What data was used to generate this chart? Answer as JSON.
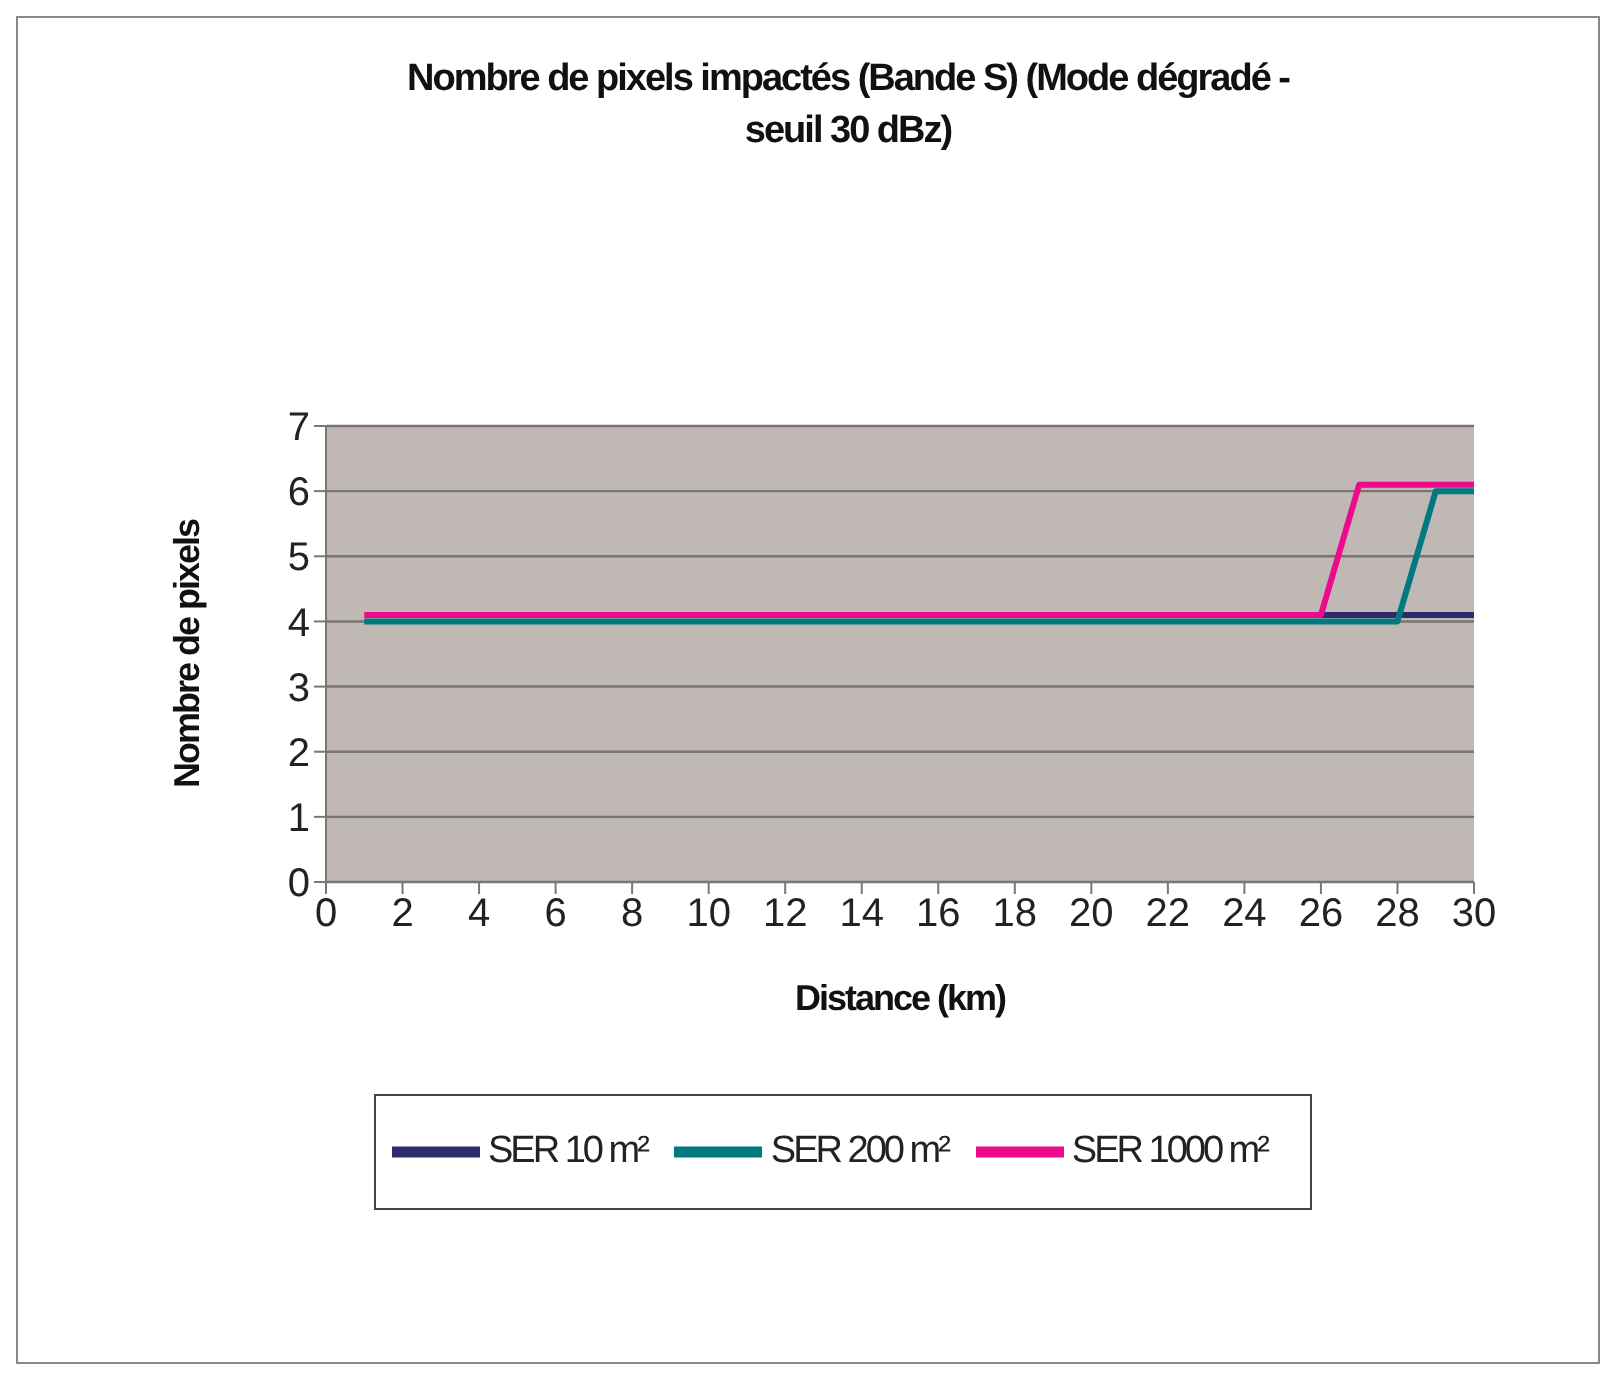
{
  "chart_data": {
    "type": "line",
    "title": "Nombre de pixels impactés (Bande S) (Mode dégradé - seuil 30 dBz)",
    "xlabel": "Distance (km)",
    "ylabel": "Nombre de pixels",
    "x": [
      1,
      2,
      3,
      4,
      5,
      6,
      7,
      8,
      9,
      10,
      11,
      12,
      13,
      14,
      15,
      16,
      17,
      18,
      19,
      20,
      21,
      22,
      23,
      24,
      25,
      26,
      27,
      28,
      29,
      30
    ],
    "series": [
      {
        "name": "SER 10 m²",
        "color": "#2e2b6a",
        "values": [
          null,
          null,
          null,
          null,
          null,
          null,
          null,
          null,
          null,
          null,
          null,
          null,
          null,
          null,
          null,
          null,
          null,
          null,
          null,
          null,
          null,
          null,
          null,
          null,
          null,
          4.1,
          4.1,
          4.1,
          4.1,
          4.1
        ]
      },
      {
        "name": "SER 200 m²",
        "color": "#007a80",
        "values": [
          4,
          4,
          4,
          4,
          4,
          4,
          4,
          4,
          4,
          4,
          4,
          4,
          4,
          4,
          4,
          4,
          4,
          4,
          4,
          4,
          4,
          4,
          4,
          4,
          4,
          4,
          4,
          4,
          6,
          6
        ]
      },
      {
        "name": "SER 1000 m²",
        "color": "#ee0a8c",
        "values": [
          4.1,
          4.1,
          4.1,
          4.1,
          4.1,
          4.1,
          4.1,
          4.1,
          4.1,
          4.1,
          4.1,
          4.1,
          4.1,
          4.1,
          4.1,
          4.1,
          4.1,
          4.1,
          4.1,
          4.1,
          4.1,
          4.1,
          4.1,
          4.1,
          4.1,
          4.1,
          6.1,
          6.1,
          6.1,
          6.1
        ]
      }
    ],
    "xlim": [
      0,
      30
    ],
    "xticks": [
      0,
      2,
      4,
      6,
      8,
      10,
      12,
      14,
      16,
      18,
      20,
      22,
      24,
      26,
      28,
      30
    ],
    "ylim": [
      0,
      7
    ],
    "yticks": [
      0,
      1,
      2,
      3,
      4,
      5,
      6,
      7
    ],
    "grid": "y",
    "legend": "bottom",
    "marker": "none",
    "line_style": "solid"
  }
}
